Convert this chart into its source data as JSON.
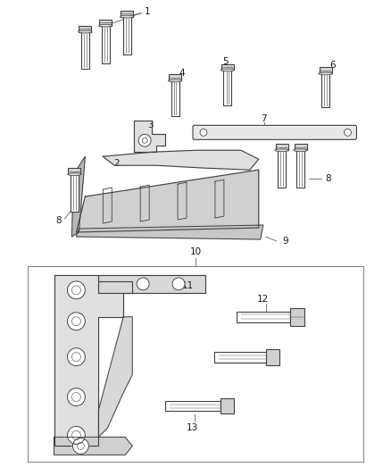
{
  "bg_color": "#ffffff",
  "line_color": "#404040",
  "label_color": "#1a1a1a",
  "fig_width": 4.38,
  "fig_height": 5.33,
  "dpi": 100
}
